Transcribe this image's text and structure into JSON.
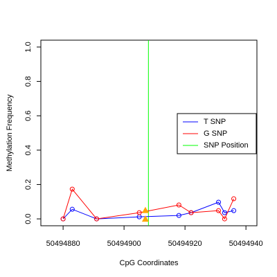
{
  "chart_data": {
    "type": "line",
    "xlabel": "CpG Coordinates",
    "ylabel": "Methylation Frequency",
    "x": [
      50494880,
      50494883,
      50494891,
      50494905,
      50494918,
      50494922,
      50494931,
      50494933,
      50494936
    ],
    "series": [
      {
        "name": "T SNP",
        "color": "#0000ff",
        "values": [
          0,
          0.056,
          0,
          0.012,
          0.02,
          0.036,
          0.097,
          0.036,
          0.048
        ]
      },
      {
        "name": "G SNP",
        "color": "#ff0000",
        "values": [
          0,
          0.173,
          0,
          0.036,
          0.081,
          0.036,
          0.048,
          0,
          0.117
        ]
      }
    ],
    "snp_position": {
      "name": "SNP Position",
      "color": "#00ff00",
      "x": 50494908
    },
    "snp_markers": {
      "color": "#ffa500",
      "x": [
        50494907,
        50494907
      ],
      "values": [
        0.05,
        0
      ]
    },
    "xlim": [
      50494872.7,
      50494943.6
    ],
    "ylim": [
      -0.04,
      1.04
    ],
    "xticks": [
      50494880,
      50494900,
      50494920,
      50494940
    ],
    "yticks": [
      {
        "value": 0,
        "label": "0.0"
      },
      0.2,
      0.4,
      0.6,
      0.8,
      {
        "value": 1,
        "label": "1.0"
      }
    ],
    "legend": "right"
  }
}
